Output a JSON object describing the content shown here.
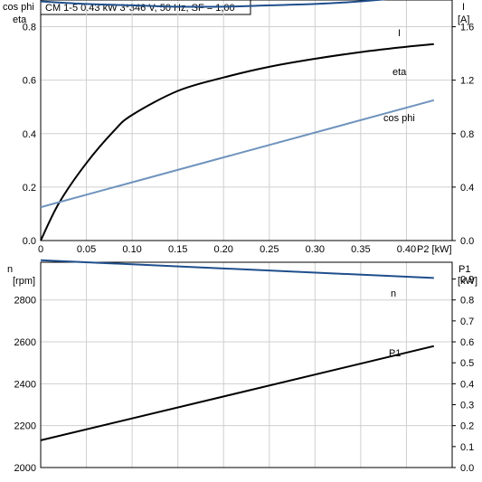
{
  "title": "CM 1-5   0.43 kW   3*346 V, 50 Hz, SF = 1,00",
  "colors": {
    "I": "#1f4e8c",
    "eta": "#000000",
    "cosphi": "#6f93bd",
    "n": "#1f4e8c",
    "P1": "#000000"
  },
  "chart_data": [
    {
      "type": "line",
      "x_label": "P2 [kW]",
      "x_ticks": [
        "0",
        "0.05",
        "0.10",
        "0.15",
        "0.20",
        "0.25",
        "0.30",
        "0.35",
        "0.40"
      ],
      "xlim": [
        0,
        0.45
      ],
      "y_left_label": [
        "cos phi",
        "eta"
      ],
      "y_left_ticks": [
        "0.0",
        "0.2",
        "0.4",
        "0.6",
        "0.8"
      ],
      "y_left_lim": [
        0,
        0.9
      ],
      "y_right_label": [
        "I",
        "[A]"
      ],
      "y_right_ticks": [
        "0.0",
        "0.4",
        "0.8",
        "1.2",
        "1.6"
      ],
      "y_right_lim": [
        0,
        1.8
      ],
      "grid": true,
      "series": [
        {
          "name": "I",
          "axis": "right",
          "color": "#1f4e8c",
          "x": [
            0,
            0.05,
            0.1,
            0.15,
            0.2,
            0.25,
            0.3,
            0.35,
            0.4,
            0.43
          ],
          "y": [
            1.79,
            1.77,
            1.76,
            1.75,
            1.75,
            1.76,
            1.77,
            1.79,
            1.82,
            1.84
          ]
        },
        {
          "name": "eta",
          "axis": "left",
          "color": "#000000",
          "x": [
            0,
            0.02,
            0.05,
            0.08,
            0.1,
            0.15,
            0.2,
            0.25,
            0.3,
            0.35,
            0.4,
            0.43
          ],
          "y": [
            0.0,
            0.14,
            0.29,
            0.41,
            0.47,
            0.56,
            0.61,
            0.65,
            0.68,
            0.705,
            0.725,
            0.735
          ]
        },
        {
          "name": "cos phi",
          "axis": "left",
          "color": "#6f93bd",
          "x": [
            0,
            0.43
          ],
          "y": [
            0.125,
            0.525
          ]
        }
      ]
    },
    {
      "type": "line",
      "x_label": "",
      "xlim": [
        0,
        0.45
      ],
      "y_left_label": [
        "n",
        "[rpm]"
      ],
      "y_left_ticks": [
        "2000",
        "2200",
        "2400",
        "2600",
        "2800"
      ],
      "y_left_lim": [
        2000,
        2980
      ],
      "y_right_label": [
        "P1",
        "[kW]"
      ],
      "y_right_ticks": [
        "0.0",
        "0.1",
        "0.2",
        "0.3",
        "0.4",
        "0.5",
        "0.6",
        "0.7",
        "0.8",
        "0.9"
      ],
      "y_right_lim": [
        0,
        0.98
      ],
      "grid": true,
      "series": [
        {
          "name": "n",
          "axis": "left",
          "color": "#1f4e8c",
          "x": [
            0,
            0.43
          ],
          "y": [
            2990,
            2905
          ]
        },
        {
          "name": "P1",
          "axis": "right",
          "color": "#000000",
          "x": [
            0,
            0.43
          ],
          "y": [
            0.13,
            0.58
          ]
        }
      ]
    }
  ]
}
